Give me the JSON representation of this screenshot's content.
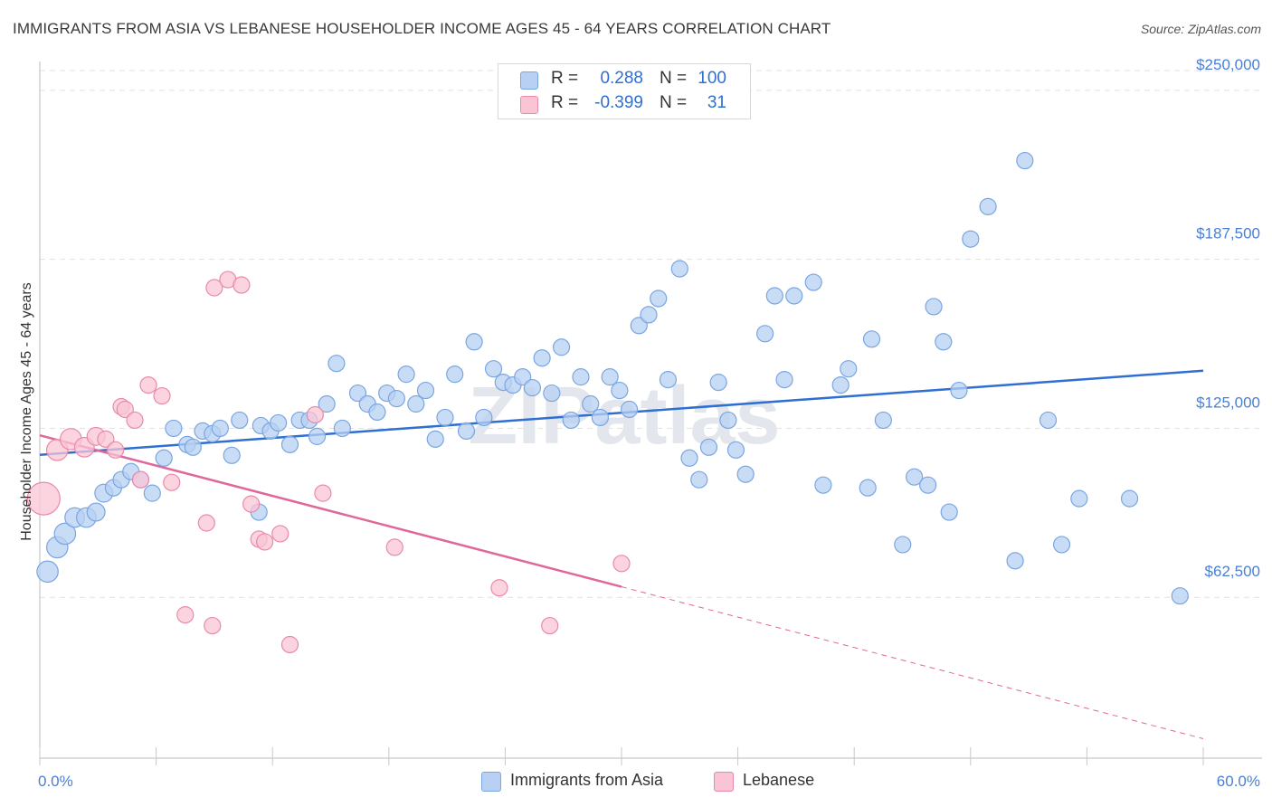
{
  "title": "IMMIGRANTS FROM ASIA VS LEBANESE HOUSEHOLDER INCOME AGES 45 - 64 YEARS CORRELATION CHART",
  "source": "Source: ZipAtlas.com",
  "watermark": "ZIPatlas",
  "legend": {
    "r_label": "R =",
    "n_label": "N =",
    "rows": [
      {
        "r": "0.288",
        "n": "100",
        "color": "#a9c6f0",
        "stroke": "#7aa6e0"
      },
      {
        "r": "-0.399",
        "n": "31",
        "color": "#f6b8cc",
        "stroke": "#e98aaa"
      }
    ]
  },
  "bottom_legend": [
    {
      "label": "Immigrants from Asia",
      "color": "#b7d0f3",
      "stroke": "#7aa6e0"
    },
    {
      "label": "Lebanese",
      "color": "#f9c5d5",
      "stroke": "#e98aaa"
    }
  ],
  "chart_data": {
    "type": "scatter",
    "xlabel": "",
    "ylabel": "Householder Income Ages 45 - 64 years",
    "xlim": [
      0,
      60
    ],
    "ylim": [
      3000,
      262000
    ],
    "x_tick_labels": [
      "0.0%",
      "60.0%"
    ],
    "y_ticks": [
      62500,
      125000,
      187500,
      250000
    ],
    "y_tick_labels": [
      "$62,500",
      "$125,000",
      "$187,500",
      "$250,000"
    ],
    "colors": {
      "asia": "#7aa6e0",
      "asia_fill": "#b7d0f3",
      "asia_line": "#2f6fd1",
      "leb": "#e98aaa",
      "leb_fill": "#f9c5d5",
      "leb_line": "#e0679a"
    },
    "series": [
      {
        "name": "Immigrants from Asia",
        "trend": {
          "x0": 0,
          "y0": 115200,
          "x1": 60,
          "y1": 146300
        },
        "points": [
          [
            0.4,
            72000,
            1.3
          ],
          [
            0.9,
            81000,
            1.3
          ],
          [
            1.3,
            86000,
            1.3
          ],
          [
            1.8,
            92000,
            1.2
          ],
          [
            2.4,
            92000,
            1.2
          ],
          [
            2.9,
            94000,
            1.1
          ],
          [
            3.3,
            101000,
            1.1
          ],
          [
            3.8,
            103000,
            1.0
          ],
          [
            4.2,
            106000,
            1.0
          ],
          [
            4.7,
            109000,
            1.0
          ],
          [
            5.2,
            106000,
            1.0
          ],
          [
            5.8,
            101000,
            1.0
          ],
          [
            6.4,
            114000,
            1.0
          ],
          [
            6.9,
            125000,
            1.0
          ],
          [
            7.6,
            119000,
            1.0
          ],
          [
            7.9,
            118000,
            1.0
          ],
          [
            8.4,
            124000,
            1.0
          ],
          [
            8.9,
            123000,
            1.0
          ],
          [
            9.3,
            125000,
            1.0
          ],
          [
            9.9,
            115000,
            1.0
          ],
          [
            10.3,
            128000,
            1.0
          ],
          [
            11.3,
            94000,
            1.0
          ],
          [
            11.4,
            126000,
            1.0
          ],
          [
            11.9,
            124000,
            1.0
          ],
          [
            12.3,
            127000,
            1.0
          ],
          [
            12.9,
            119000,
            1.0
          ],
          [
            13.4,
            128000,
            1.0
          ],
          [
            13.9,
            128000,
            1.0
          ],
          [
            14.3,
            122000,
            1.0
          ],
          [
            14.8,
            134000,
            1.0
          ],
          [
            15.3,
            149000,
            1.0
          ],
          [
            15.6,
            125000,
            1.0
          ],
          [
            16.4,
            138000,
            1.0
          ],
          [
            16.9,
            134000,
            1.0
          ],
          [
            17.4,
            131000,
            1.0
          ],
          [
            17.9,
            138000,
            1.0
          ],
          [
            18.4,
            136000,
            1.0
          ],
          [
            18.9,
            145000,
            1.0
          ],
          [
            19.4,
            134000,
            1.0
          ],
          [
            19.9,
            139000,
            1.0
          ],
          [
            20.4,
            121000,
            1.0
          ],
          [
            20.9,
            129000,
            1.0
          ],
          [
            21.4,
            145000,
            1.0
          ],
          [
            22.0,
            124000,
            1.0
          ],
          [
            22.4,
            157000,
            1.0
          ],
          [
            22.9,
            129000,
            1.0
          ],
          [
            23.4,
            147000,
            1.0
          ],
          [
            23.9,
            142000,
            1.0
          ],
          [
            24.4,
            141000,
            1.0
          ],
          [
            24.9,
            144000,
            1.0
          ],
          [
            25.4,
            140000,
            1.0
          ],
          [
            25.9,
            151000,
            1.0
          ],
          [
            26.4,
            138000,
            1.0
          ],
          [
            26.9,
            155000,
            1.0
          ],
          [
            27.4,
            128000,
            1.0
          ],
          [
            27.9,
            144000,
            1.0
          ],
          [
            28.4,
            134000,
            1.0
          ],
          [
            28.9,
            129000,
            1.0
          ],
          [
            29.4,
            144000,
            1.0
          ],
          [
            29.9,
            139000,
            1.0
          ],
          [
            30.4,
            132000,
            1.0
          ],
          [
            30.9,
            163000,
            1.0
          ],
          [
            31.4,
            167000,
            1.0
          ],
          [
            31.9,
            173000,
            1.0
          ],
          [
            32.4,
            143000,
            1.0
          ],
          [
            33.0,
            184000,
            1.0
          ],
          [
            33.5,
            114000,
            1.0
          ],
          [
            34.0,
            106000,
            1.0
          ],
          [
            34.5,
            118000,
            1.0
          ],
          [
            35.0,
            142000,
            1.0
          ],
          [
            35.5,
            128000,
            1.0
          ],
          [
            35.9,
            117000,
            1.0
          ],
          [
            36.4,
            108000,
            1.0
          ],
          [
            37.4,
            160000,
            1.0
          ],
          [
            37.9,
            174000,
            1.0
          ],
          [
            38.4,
            143000,
            1.0
          ],
          [
            38.9,
            174000,
            1.0
          ],
          [
            39.9,
            179000,
            1.0
          ],
          [
            40.4,
            104000,
            1.0
          ],
          [
            41.3,
            141000,
            1.0
          ],
          [
            41.7,
            147000,
            1.0
          ],
          [
            42.7,
            103000,
            1.0
          ],
          [
            42.9,
            158000,
            1.0
          ],
          [
            43.5,
            128000,
            1.0
          ],
          [
            44.5,
            82000,
            1.0
          ],
          [
            45.1,
            107000,
            1.0
          ],
          [
            45.8,
            104000,
            1.0
          ],
          [
            46.1,
            170000,
            1.0
          ],
          [
            46.6,
            157000,
            1.0
          ],
          [
            46.9,
            94000,
            1.0
          ],
          [
            47.4,
            139000,
            1.0
          ],
          [
            48.0,
            195000,
            1.0
          ],
          [
            48.9,
            207000,
            1.0
          ],
          [
            50.3,
            76000,
            1.0
          ],
          [
            50.8,
            224000,
            1.0
          ],
          [
            52.0,
            128000,
            1.0
          ],
          [
            52.7,
            82000,
            1.0
          ],
          [
            53.6,
            99000,
            1.0
          ],
          [
            56.2,
            99000,
            1.0
          ],
          [
            58.8,
            63000,
            1.0
          ]
        ]
      },
      {
        "name": "Lebanese",
        "trend": {
          "x0": 0,
          "y0": 122400,
          "x1": 30,
          "y1": 66400,
          "x_ext": 60,
          "y_ext": 10200
        },
        "points": [
          [
            0.2,
            99000,
            2.0
          ],
          [
            0.9,
            117000,
            1.3
          ],
          [
            1.6,
            121000,
            1.3
          ],
          [
            2.3,
            118000,
            1.2
          ],
          [
            2.9,
            122000,
            1.1
          ],
          [
            3.4,
            121000,
            1.0
          ],
          [
            3.9,
            117000,
            1.0
          ],
          [
            4.2,
            133000,
            1.0
          ],
          [
            4.4,
            132000,
            1.0
          ],
          [
            4.9,
            128000,
            1.0
          ],
          [
            5.2,
            106000,
            1.0
          ],
          [
            5.6,
            141000,
            1.0
          ],
          [
            6.3,
            137000,
            1.0
          ],
          [
            6.8,
            105000,
            1.0
          ],
          [
            7.5,
            56000,
            1.0
          ],
          [
            8.6,
            90000,
            1.0
          ],
          [
            8.9,
            52000,
            1.0
          ],
          [
            9.0,
            177000,
            1.0
          ],
          [
            9.7,
            180000,
            1.0
          ],
          [
            10.4,
            178000,
            1.0
          ],
          [
            10.9,
            97000,
            1.0
          ],
          [
            11.3,
            84000,
            1.0
          ],
          [
            11.6,
            83000,
            1.0
          ],
          [
            12.4,
            86000,
            1.0
          ],
          [
            12.9,
            45000,
            1.0
          ],
          [
            14.2,
            130000,
            1.0
          ],
          [
            14.6,
            101000,
            1.0
          ],
          [
            18.3,
            81000,
            1.0
          ],
          [
            23.7,
            66000,
            1.0
          ],
          [
            26.3,
            52000,
            1.0
          ],
          [
            30.0,
            75000,
            1.0
          ]
        ]
      }
    ],
    "grid": true
  }
}
